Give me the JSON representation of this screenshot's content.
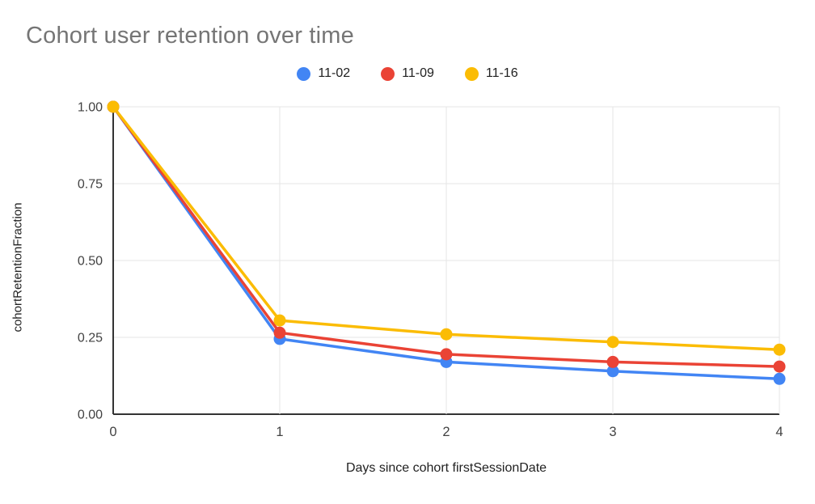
{
  "title": "Cohort user retention over time",
  "chart_data": {
    "type": "line",
    "title": "Cohort user retention over time",
    "xlabel": "Days since cohort firstSessionDate",
    "ylabel": "cohortRetentionFraction",
    "x": [
      0,
      1,
      2,
      3,
      4
    ],
    "series": [
      {
        "name": "11-02",
        "color": "#4285F4",
        "values": [
          1.0,
          0.245,
          0.17,
          0.14,
          0.115
        ]
      },
      {
        "name": "11-09",
        "color": "#EA4335",
        "values": [
          1.0,
          0.265,
          0.195,
          0.17,
          0.155
        ]
      },
      {
        "name": "11-16",
        "color": "#FBBC04",
        "values": [
          1.0,
          0.305,
          0.26,
          0.235,
          0.21
        ]
      }
    ],
    "xlim": [
      0,
      4
    ],
    "ylim": [
      0,
      1
    ],
    "xticks": [
      0,
      1,
      2,
      3,
      4
    ],
    "xtick_labels": [
      "0",
      "1",
      "2",
      "3",
      "4"
    ],
    "yticks": [
      0,
      0.25,
      0.5,
      0.75,
      1.0
    ],
    "ytick_labels": [
      "0.00",
      "0.25",
      "0.50",
      "0.75",
      "1.00"
    ],
    "grid": true,
    "legend_position": "top"
  },
  "colors": {
    "background": "#ffffff",
    "title_text": "#757575",
    "axis_line": "#333333",
    "gridline": "#e6e6e6",
    "tick_text": "#424242",
    "label_text": "#212121"
  }
}
